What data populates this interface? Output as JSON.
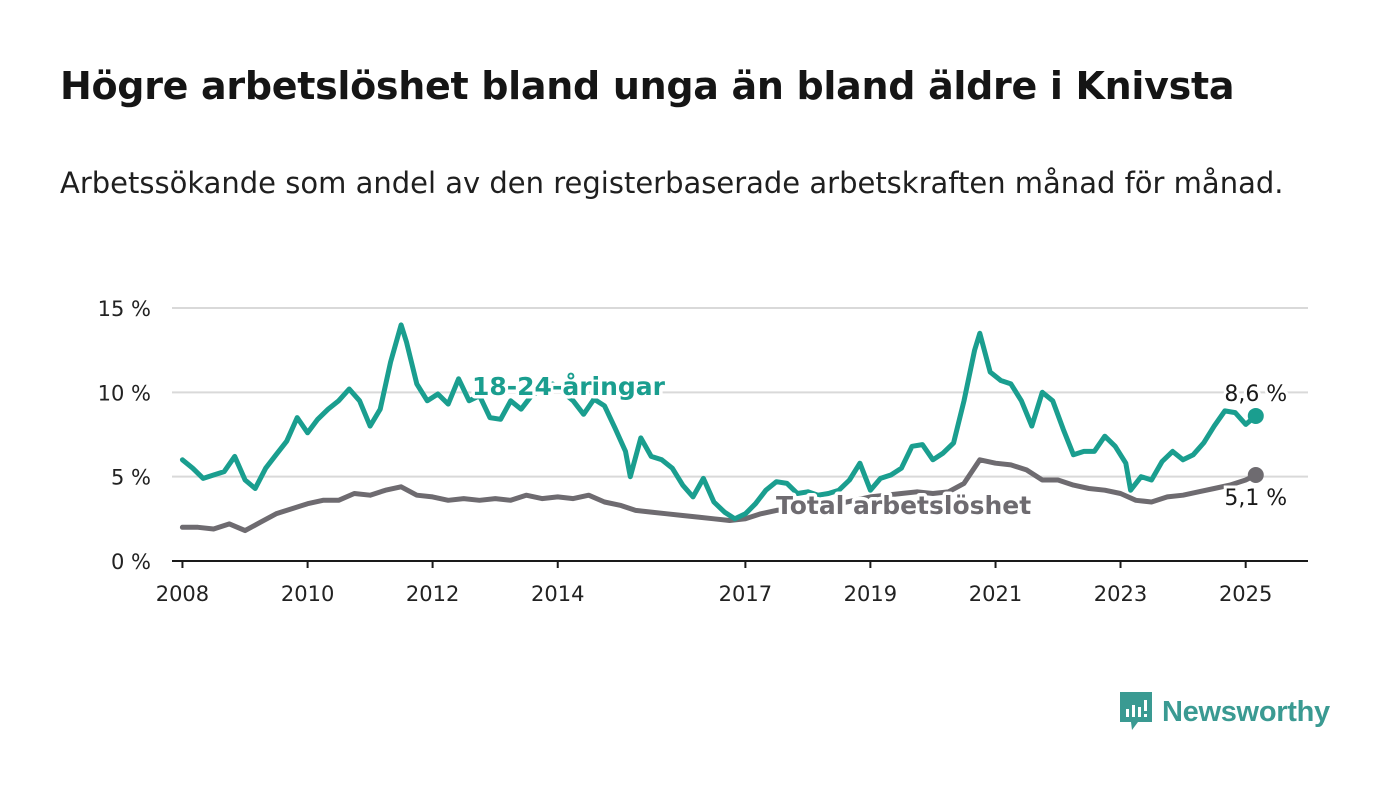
{
  "header": {
    "title": "Högre arbetslöshet bland unga än bland äldre i Knivsta",
    "subtitle": "Arbetssökande som andel av den registerbaserade arbetskraften månad för månad."
  },
  "brand": {
    "name": "Newsworthy",
    "icon": "newsworthy-logo-icon",
    "color": "#3a9a92"
  },
  "chart_data": {
    "type": "line",
    "title": "Högre arbetslöshet bland unga än bland äldre i Knivsta",
    "subtitle": "Arbetssökande som andel av den registerbaserade arbetskraften månad för månad.",
    "xlim": [
      "2007-11-01",
      "2025-12-31"
    ],
    "ylim": [
      0,
      15
    ],
    "grid": true,
    "yticks": [
      {
        "value": 0,
        "label": "0 %"
      },
      {
        "value": 5,
        "label": "5 %"
      },
      {
        "value": 10,
        "label": "10 %"
      },
      {
        "value": 15,
        "label": "15 %"
      }
    ],
    "xticks": [
      {
        "value": "2008-01-01",
        "label": "2008"
      },
      {
        "value": "2010-01-01",
        "label": "2010"
      },
      {
        "value": "2012-01-01",
        "label": "2012"
      },
      {
        "value": "2014-01-01",
        "label": "2014"
      },
      {
        "value": "2017-01-01",
        "label": "2017"
      },
      {
        "value": "2019-01-01",
        "label": "2019"
      },
      {
        "value": "2021-01-01",
        "label": "2021"
      },
      {
        "value": "2023-01-01",
        "label": "2023"
      },
      {
        "value": "2025-01-01",
        "label": "2025"
      }
    ],
    "series": [
      {
        "name": "18-24-åringar",
        "color": "#1a9e8f",
        "end_label": "8,6 %",
        "points": [
          [
            "2008-01",
            6.0
          ],
          [
            "2008-03",
            5.5
          ],
          [
            "2008-05",
            4.9
          ],
          [
            "2008-07",
            5.1
          ],
          [
            "2008-09",
            5.3
          ],
          [
            "2008-11",
            6.2
          ],
          [
            "2009-01",
            4.8
          ],
          [
            "2009-03",
            4.3
          ],
          [
            "2009-05",
            5.5
          ],
          [
            "2009-07",
            6.3
          ],
          [
            "2009-09",
            7.1
          ],
          [
            "2009-11",
            8.5
          ],
          [
            "2010-01",
            7.6
          ],
          [
            "2010-03",
            8.4
          ],
          [
            "2010-05",
            9.0
          ],
          [
            "2010-07",
            9.5
          ],
          [
            "2010-09",
            10.2
          ],
          [
            "2010-11",
            9.5
          ],
          [
            "2011-01",
            8.0
          ],
          [
            "2011-03",
            9.0
          ],
          [
            "2011-05",
            11.8
          ],
          [
            "2011-07",
            14.0
          ],
          [
            "2011-08",
            13.0
          ],
          [
            "2011-10",
            10.5
          ],
          [
            "2011-12",
            9.5
          ],
          [
            "2012-02",
            9.9
          ],
          [
            "2012-04",
            9.3
          ],
          [
            "2012-06",
            10.8
          ],
          [
            "2012-08",
            9.5
          ],
          [
            "2012-10",
            9.8
          ],
          [
            "2012-12",
            8.5
          ],
          [
            "2013-02",
            8.4
          ],
          [
            "2013-04",
            9.5
          ],
          [
            "2013-06",
            9.0
          ],
          [
            "2013-08",
            9.8
          ],
          [
            "2013-10",
            10.2
          ],
          [
            "2013-12",
            10.5
          ],
          [
            "2014-02",
            10.0
          ],
          [
            "2014-04",
            9.5
          ],
          [
            "2014-06",
            8.7
          ],
          [
            "2014-08",
            9.6
          ],
          [
            "2014-10",
            9.2
          ],
          [
            "2014-12",
            7.9
          ],
          [
            "2015-02",
            6.5
          ],
          [
            "2015-03",
            5.0
          ],
          [
            "2015-05",
            7.3
          ],
          [
            "2015-07",
            6.2
          ],
          [
            "2015-09",
            6.0
          ],
          [
            "2015-11",
            5.5
          ],
          [
            "2016-01",
            4.5
          ],
          [
            "2016-03",
            3.8
          ],
          [
            "2016-05",
            4.9
          ],
          [
            "2016-07",
            3.5
          ],
          [
            "2016-09",
            2.9
          ],
          [
            "2016-11",
            2.5
          ],
          [
            "2017-01",
            2.8
          ],
          [
            "2017-03",
            3.4
          ],
          [
            "2017-05",
            4.2
          ],
          [
            "2017-07",
            4.7
          ],
          [
            "2017-09",
            4.6
          ],
          [
            "2017-11",
            4.0
          ],
          [
            "2018-01",
            4.1
          ],
          [
            "2018-03",
            3.9
          ],
          [
            "2018-05",
            4.0
          ],
          [
            "2018-07",
            4.2
          ],
          [
            "2018-09",
            4.8
          ],
          [
            "2018-11",
            5.8
          ],
          [
            "2019-01",
            4.2
          ],
          [
            "2019-03",
            4.9
          ],
          [
            "2019-05",
            5.1
          ],
          [
            "2019-07",
            5.5
          ],
          [
            "2019-09",
            6.8
          ],
          [
            "2019-11",
            6.9
          ],
          [
            "2020-01",
            6.0
          ],
          [
            "2020-03",
            6.4
          ],
          [
            "2020-05",
            7.0
          ],
          [
            "2020-07",
            9.5
          ],
          [
            "2020-09",
            12.5
          ],
          [
            "2020-10",
            13.5
          ],
          [
            "2020-12",
            11.2
          ],
          [
            "2021-02",
            10.7
          ],
          [
            "2021-04",
            10.5
          ],
          [
            "2021-06",
            9.5
          ],
          [
            "2021-08",
            8.0
          ],
          [
            "2021-10",
            10.0
          ],
          [
            "2021-12",
            9.5
          ],
          [
            "2022-02",
            7.8
          ],
          [
            "2022-04",
            6.3
          ],
          [
            "2022-06",
            6.5
          ],
          [
            "2022-08",
            6.5
          ],
          [
            "2022-10",
            7.4
          ],
          [
            "2022-12",
            6.8
          ],
          [
            "2023-02",
            5.8
          ],
          [
            "2023-03",
            4.2
          ],
          [
            "2023-05",
            5.0
          ],
          [
            "2023-07",
            4.8
          ],
          [
            "2023-09",
            5.9
          ],
          [
            "2023-11",
            6.5
          ],
          [
            "2024-01",
            6.0
          ],
          [
            "2024-03",
            6.3
          ],
          [
            "2024-05",
            7.0
          ],
          [
            "2024-07",
            8.0
          ],
          [
            "2024-09",
            8.9
          ],
          [
            "2024-11",
            8.8
          ],
          [
            "2025-01",
            8.1
          ],
          [
            "2025-03",
            8.6
          ]
        ]
      },
      {
        "name": "Total arbetslöshet",
        "color": "#6e6b70",
        "end_label": "5,1 %",
        "points": [
          [
            "2008-01",
            2.0
          ],
          [
            "2008-04",
            2.0
          ],
          [
            "2008-07",
            1.9
          ],
          [
            "2008-10",
            2.2
          ],
          [
            "2009-01",
            1.8
          ],
          [
            "2009-04",
            2.3
          ],
          [
            "2009-07",
            2.8
          ],
          [
            "2009-10",
            3.1
          ],
          [
            "2010-01",
            3.4
          ],
          [
            "2010-04",
            3.6
          ],
          [
            "2010-07",
            3.6
          ],
          [
            "2010-10",
            4.0
          ],
          [
            "2011-01",
            3.9
          ],
          [
            "2011-04",
            4.2
          ],
          [
            "2011-07",
            4.4
          ],
          [
            "2011-10",
            3.9
          ],
          [
            "2012-01",
            3.8
          ],
          [
            "2012-04",
            3.6
          ],
          [
            "2012-07",
            3.7
          ],
          [
            "2012-10",
            3.6
          ],
          [
            "2013-01",
            3.7
          ],
          [
            "2013-04",
            3.6
          ],
          [
            "2013-07",
            3.9
          ],
          [
            "2013-10",
            3.7
          ],
          [
            "2014-01",
            3.8
          ],
          [
            "2014-04",
            3.7
          ],
          [
            "2014-07",
            3.9
          ],
          [
            "2014-10",
            3.5
          ],
          [
            "2015-01",
            3.3
          ],
          [
            "2015-04",
            3.0
          ],
          [
            "2015-07",
            2.9
          ],
          [
            "2015-10",
            2.8
          ],
          [
            "2016-01",
            2.7
          ],
          [
            "2016-04",
            2.6
          ],
          [
            "2016-07",
            2.5
          ],
          [
            "2016-10",
            2.4
          ],
          [
            "2017-01",
            2.5
          ],
          [
            "2017-04",
            2.8
          ],
          [
            "2017-07",
            3.0
          ],
          [
            "2017-10",
            3.1
          ],
          [
            "2018-01",
            3.2
          ],
          [
            "2018-04",
            3.3
          ],
          [
            "2018-07",
            3.4
          ],
          [
            "2018-10",
            3.6
          ],
          [
            "2019-01",
            3.8
          ],
          [
            "2019-04",
            3.9
          ],
          [
            "2019-07",
            4.0
          ],
          [
            "2019-10",
            4.1
          ],
          [
            "2020-01",
            4.0
          ],
          [
            "2020-04",
            4.1
          ],
          [
            "2020-07",
            4.6
          ],
          [
            "2020-10",
            6.0
          ],
          [
            "2021-01",
            5.8
          ],
          [
            "2021-04",
            5.7
          ],
          [
            "2021-07",
            5.4
          ],
          [
            "2021-10",
            4.8
          ],
          [
            "2022-01",
            4.8
          ],
          [
            "2022-04",
            4.5
          ],
          [
            "2022-07",
            4.3
          ],
          [
            "2022-10",
            4.2
          ],
          [
            "2023-01",
            4.0
          ],
          [
            "2023-04",
            3.6
          ],
          [
            "2023-07",
            3.5
          ],
          [
            "2023-10",
            3.8
          ],
          [
            "2024-01",
            3.9
          ],
          [
            "2024-04",
            4.1
          ],
          [
            "2024-07",
            4.3
          ],
          [
            "2024-10",
            4.5
          ],
          [
            "2025-01",
            4.8
          ],
          [
            "2025-03",
            5.1
          ]
        ]
      }
    ]
  }
}
